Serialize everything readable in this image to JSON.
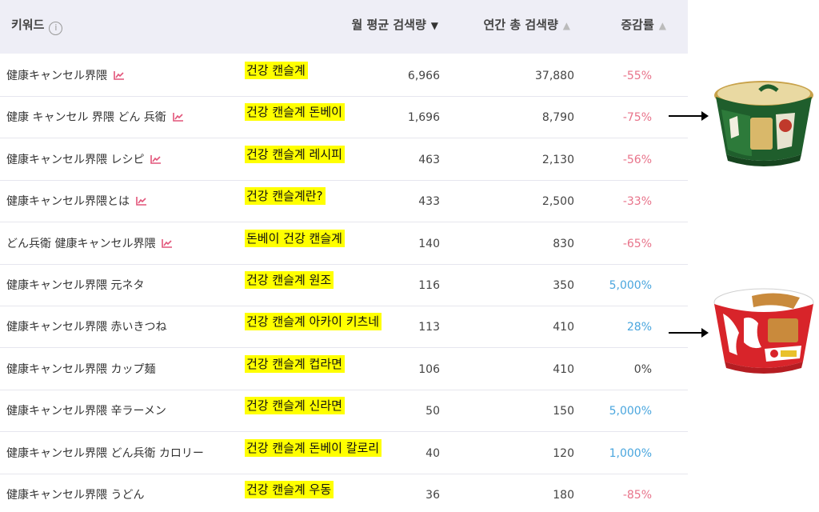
{
  "header": {
    "keyword_label": "키워드",
    "info_icon": "i",
    "monthly_label": "월 평균 검색량",
    "annual_label": "연간 총 검색량",
    "change_label": "증감률",
    "sort_down_icon": "▼",
    "sort_up_icon": "▲"
  },
  "rows": [
    {
      "keyword": "健康キャンセル界隈",
      "trend": true,
      "translation": "건강 캔슬계",
      "monthly": "6,966",
      "annual": "37,880",
      "change": "-55%",
      "tone": "neg"
    },
    {
      "keyword": "健康 キャンセル 界隈 どん 兵衛",
      "trend": true,
      "translation": "건강 캔슬계 돈베이",
      "monthly": "1,696",
      "annual": "8,790",
      "change": "-75%",
      "tone": "neg"
    },
    {
      "keyword": "健康キャンセル界隈 レシピ",
      "trend": true,
      "translation": "건강 캔슬계 레시피",
      "monthly": "463",
      "annual": "2,130",
      "change": "-56%",
      "tone": "neg"
    },
    {
      "keyword": "健康キャンセル界隈とは",
      "trend": true,
      "translation": "건강 캔슬계란?",
      "monthly": "433",
      "annual": "2,500",
      "change": "-33%",
      "tone": "neg"
    },
    {
      "keyword": "どん兵衛 健康キャンセル界隈",
      "trend": true,
      "translation": "돈베이 건강 캔슬계",
      "monthly": "140",
      "annual": "830",
      "change": "-65%",
      "tone": "neg"
    },
    {
      "keyword": "健康キャンセル界隈 元ネタ",
      "trend": false,
      "translation": "건강 캔슬계 원조",
      "monthly": "116",
      "annual": "350",
      "change": "5,000%",
      "tone": "pos"
    },
    {
      "keyword": "健康キャンセル界隈 赤いきつね",
      "trend": false,
      "translation": "건강 캔슬계 아카이 키츠네",
      "monthly": "113",
      "annual": "410",
      "change": "28%",
      "tone": "pos"
    },
    {
      "keyword": "健康キャンセル界隈 カップ麺",
      "trend": false,
      "translation": "건강 캔슬계 컵라면",
      "monthly": "106",
      "annual": "410",
      "change": "0%",
      "tone": "zero"
    },
    {
      "keyword": "健康キャンセル界隈 辛ラーメン",
      "trend": false,
      "translation": "건강 캔슬계 신라면",
      "monthly": "50",
      "annual": "150",
      "change": "5,000%",
      "tone": "pos"
    },
    {
      "keyword": "健康キャンセル界隈 どん兵衛 カロリー",
      "trend": false,
      "translation": "건강 캔슬계 돈베이 칼로리",
      "monthly": "40",
      "annual": "120",
      "change": "1,000%",
      "tone": "pos"
    },
    {
      "keyword": "健康キャンセル界隈 うどん",
      "trend": false,
      "translation": "건강 캔슬계 우동",
      "monthly": "36",
      "annual": "180",
      "change": "-85%",
      "tone": "neg"
    }
  ],
  "icons": {
    "trend": "trend-chart-icon",
    "annotation_arrow": "arrow-right-icon"
  },
  "colors": {
    "header_bg": "#eeeef6",
    "highlight": "#ffff00",
    "negative": "#e8738a",
    "positive": "#4aa6de",
    "trend_icon": "#e2557a"
  }
}
